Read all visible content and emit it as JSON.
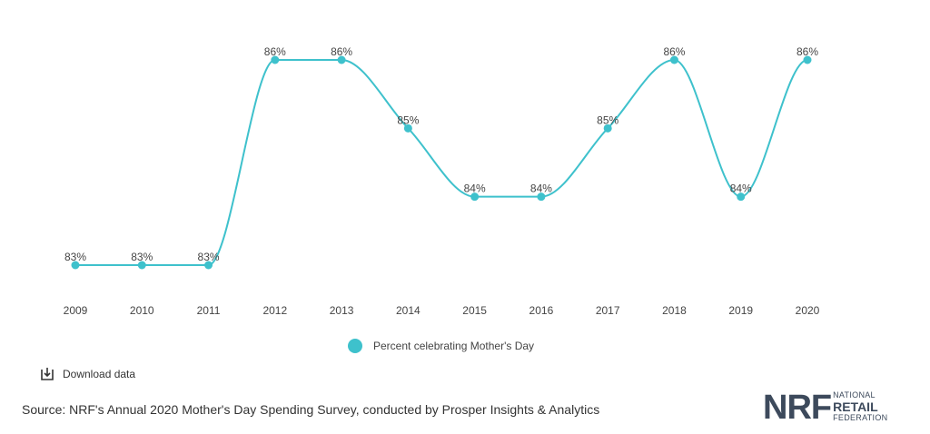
{
  "chart_data": {
    "type": "line",
    "categories": [
      "2009",
      "2010",
      "2011",
      "2012",
      "2013",
      "2014",
      "2015",
      "2016",
      "2017",
      "2018",
      "2019",
      "2020"
    ],
    "series": [
      {
        "name": "Percent celebrating Mother's Day",
        "values": [
          83,
          83,
          83,
          86,
          86,
          85,
          84,
          84,
          85,
          86,
          84,
          86
        ],
        "labels": [
          "83%",
          "83%",
          "83%",
          "86%",
          "86%",
          "85%",
          "84%",
          "84%",
          "85%",
          "86%",
          "84%",
          "86%"
        ]
      }
    ],
    "ylim": [
      83,
      86
    ],
    "grid": false,
    "legend_position": "bottom"
  },
  "colors": {
    "series": "#3ec1cc",
    "text": "#444444",
    "logo": "#3d4a5c"
  },
  "legend": {
    "label": "Percent celebrating Mother's Day"
  },
  "download": {
    "label": "Download data",
    "icon": "download-icon"
  },
  "source": "Source: NRF's Annual 2020 Mother's Day Spending Survey, conducted by Prosper Insights & Analytics",
  "logo": {
    "mark": "NRF",
    "line1": "NATIONAL",
    "line2": "RETAIL",
    "line3": "FEDERATION"
  }
}
